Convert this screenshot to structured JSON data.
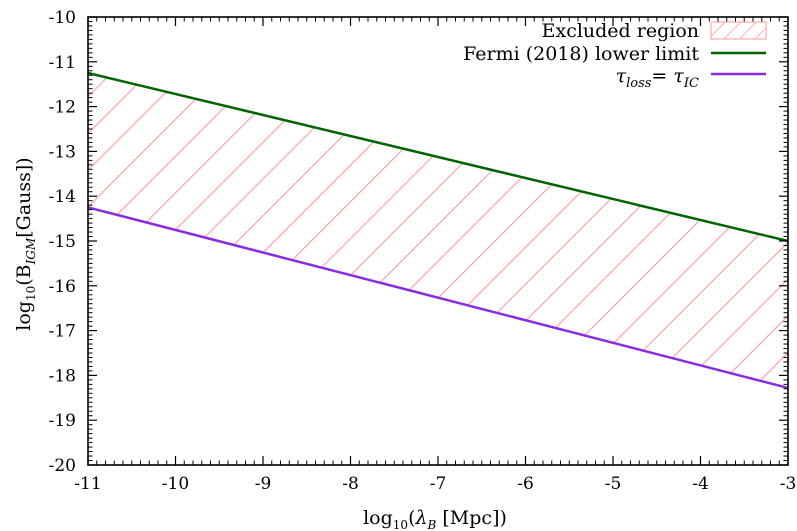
{
  "chart_data": {
    "type": "line",
    "xlabel": {
      "base": "log",
      "sub": "10",
      "open": "(",
      "lambda": "λ",
      "lambda_sub": "B",
      "rest": " [Mpc])"
    },
    "ylabel": {
      "base": "log",
      "sub": "10",
      "open": "(B",
      "b_sub": "IGM",
      "rest": "[Gauss])"
    },
    "xlim": [
      -11,
      -3
    ],
    "ylim": [
      -20,
      -10
    ],
    "x_ticks": [
      -11,
      -10,
      -9,
      -8,
      -7,
      -6,
      -5,
      -4,
      -3
    ],
    "y_ticks": [
      -10,
      -11,
      -12,
      -13,
      -14,
      -15,
      -16,
      -17,
      -18,
      -19,
      -20
    ],
    "x_tick_labels": [
      "-11",
      "-10",
      "-9",
      "-8",
      "-7",
      "-6",
      "-5",
      "-4",
      "-3"
    ],
    "y_tick_labels": [
      "-10",
      "-11",
      "-12",
      "-13",
      "-14",
      "-15",
      "-16",
      "-17",
      "-18",
      "-19",
      "-20"
    ],
    "series": [
      {
        "name": "Fermi (2018) lower limit",
        "color": "#006400",
        "x": [
          -11,
          -3
        ],
        "y": [
          -11.25,
          -15.0
        ]
      },
      {
        "name_parts": {
          "t1": "τ",
          "t1_sub": "loss",
          "eq": "= ",
          "t2": "τ",
          "t2_sub": "IC"
        },
        "color": "#8a2be2",
        "x": [
          -11,
          -3
        ],
        "y": [
          -14.25,
          -18.28
        ]
      }
    ],
    "filled_region": {
      "name": "Excluded region",
      "color": "#ff9a9a",
      "pattern": "diagonal-hatch",
      "between": [
        "Fermi (2018) lower limit",
        "tau_loss = tau_IC"
      ]
    },
    "legend_position": "top-right",
    "grid": false
  }
}
